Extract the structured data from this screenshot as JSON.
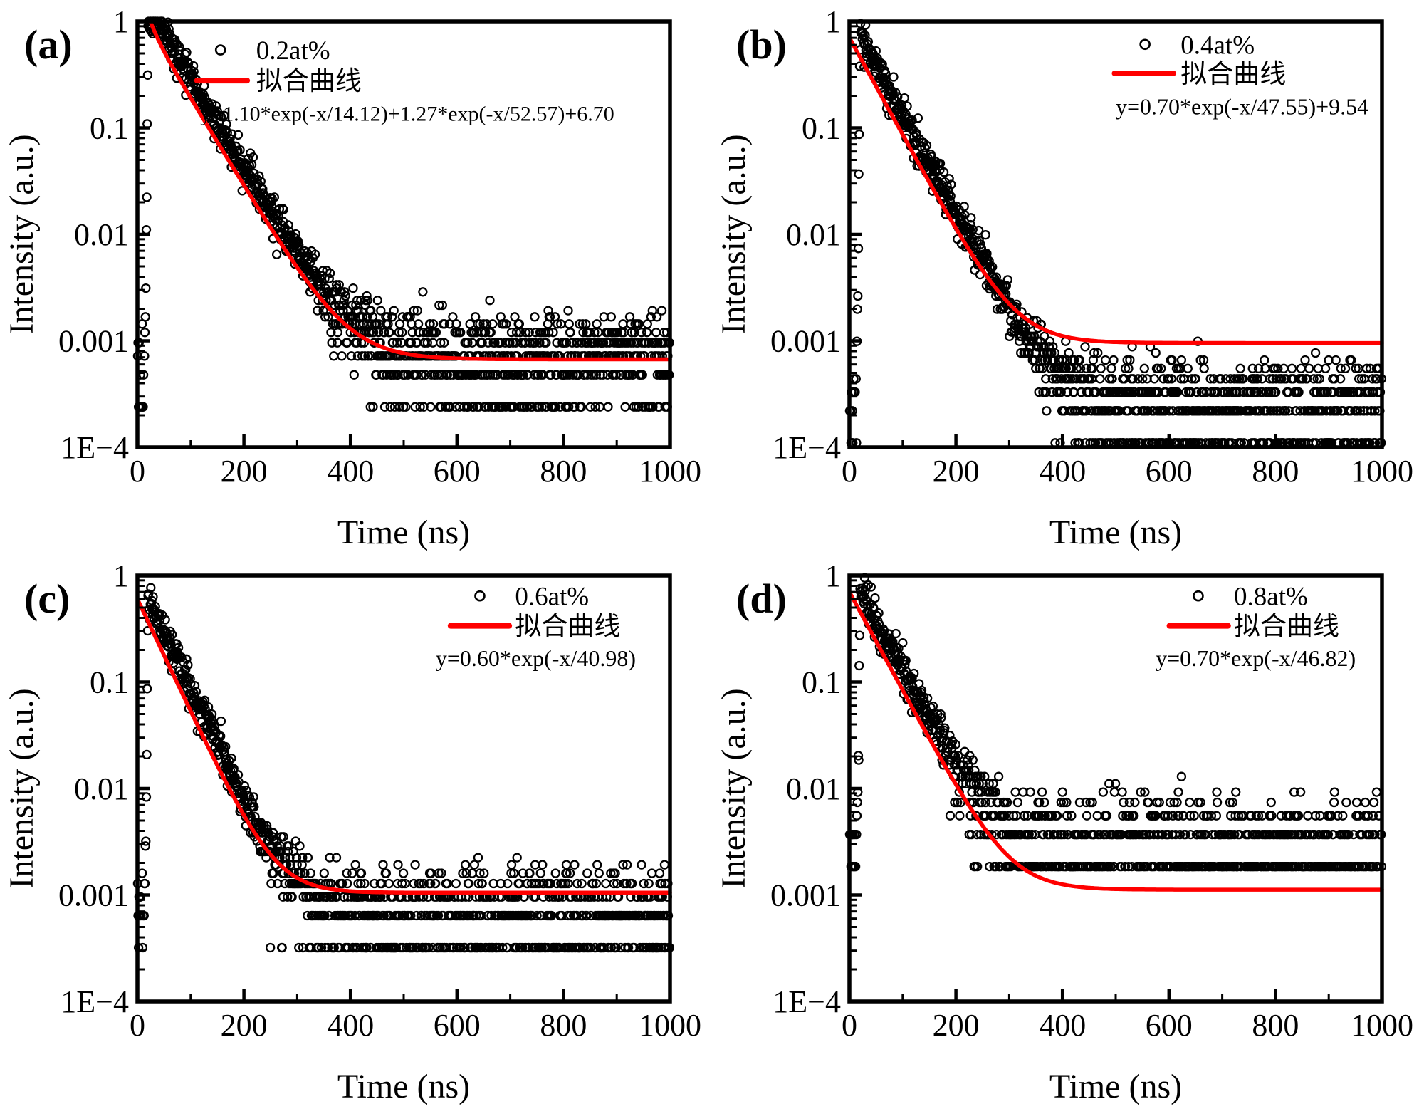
{
  "figure_title": "",
  "axes_shared": {
    "xlabel": "Time (ns)",
    "ylabel": "Intensity (a.u.)",
    "xlim": [
      0,
      1000
    ],
    "ylim": [
      0.0001,
      1
    ],
    "yscale": "log",
    "xscale": "linear",
    "xticks": [
      0,
      200,
      400,
      600,
      800,
      1000
    ],
    "xtick_labels": [
      "0",
      "200",
      "400",
      "600",
      "800",
      "1000"
    ],
    "xtick_minor_step": 100,
    "ytick_labels": [
      "1",
      "0.1",
      "0.01",
      "0.001",
      "1E−4"
    ],
    "ytick_values": [
      1,
      0.1,
      0.01,
      0.001,
      0.0001
    ],
    "grid": false,
    "tick_direction": "in",
    "frame": true
  },
  "colors": {
    "data_marker": "#000000",
    "fit_line": "#ff0000",
    "background": "#ffffff",
    "text": "#000000"
  },
  "chart_data": [
    {
      "type": "scatter",
      "panel_tag": "(a)",
      "xlabel": "Time (ns)",
      "ylabel": "Intensity (a.u.)",
      "series": [
        {
          "name": "0.2at%",
          "kind": "scatter",
          "marker": "open-circle",
          "color": "#000000"
        },
        {
          "name": "拟合曲线",
          "kind": "line",
          "color": "#ff0000",
          "equation": "y=1.10*exp(-x/14.12)+1.27*exp(-x/52.57)+6.70"
        }
      ],
      "legend": {
        "scatter_label": "0.2at%",
        "fit_label": "拟合曲线",
        "equation": "y=1.10*exp(-x/14.12)+1.27*exp(-x/52.57)+6.70",
        "position": "upper-center"
      },
      "fit": {
        "amplitudes": [
          1.1,
          1.27
        ],
        "taus_ns": [
          14.12,
          52.57
        ],
        "background_level": 0.00067,
        "pulse_peak_ns": 20
      },
      "noise_model": {
        "count_quantum": 0.00024,
        "tail_mean_level": 0.00072,
        "tail_band_start_ns": 360
      },
      "decay_reaches_floor_ns": 420
    },
    {
      "type": "scatter",
      "panel_tag": "(b)",
      "xlabel": "Time (ns)",
      "ylabel": "Intensity (a.u.)",
      "series": [
        {
          "name": "0.4at%",
          "kind": "scatter",
          "marker": "open-circle",
          "color": "#000000"
        },
        {
          "name": "拟合曲线",
          "kind": "line",
          "color": "#ff0000",
          "equation": "y=0.70*exp(-x/47.55)+9.54"
        }
      ],
      "legend": {
        "scatter_label": "0.4at%",
        "fit_label": "拟合曲线",
        "equation": "y=0.70*exp(-x/47.55)+9.54",
        "position": "upper-right"
      },
      "fit": {
        "amplitudes": [
          0.7
        ],
        "taus_ns": [
          47.55
        ],
        "background_level": 0.000954,
        "pulse_peak_ns": 20
      },
      "noise_model": {
        "count_quantum": 0.00011,
        "tail_mean_level": 0.00025,
        "tail_band_start_ns": 380
      },
      "decay_reaches_floor_ns": 420
    },
    {
      "type": "scatter",
      "panel_tag": "(c)",
      "xlabel": "Time (ns)",
      "ylabel": "Intensity (a.u.)",
      "series": [
        {
          "name": "0.6at%",
          "kind": "scatter",
          "marker": "open-circle",
          "color": "#000000"
        },
        {
          "name": "拟合曲线",
          "kind": "line",
          "color": "#ff0000",
          "equation": "y=0.60*exp(-x/40.98)"
        }
      ],
      "legend": {
        "scatter_label": "0.6at%",
        "fit_label": "拟合曲线",
        "equation": "y=0.60*exp(-x/40.98)",
        "position": "upper-right"
      },
      "fit": {
        "amplitudes": [
          0.6
        ],
        "taus_ns": [
          40.98
        ],
        "background_level": 0.00105,
        "pulse_peak_ns": 20
      },
      "noise_model": {
        "count_quantum": 0.00032,
        "tail_mean_level": 0.00066,
        "tail_band_start_ns": 290
      },
      "decay_reaches_floor_ns": 330
    },
    {
      "type": "scatter",
      "panel_tag": "(d)",
      "xlabel": "Time (ns)",
      "ylabel": "Intensity (a.u.)",
      "series": [
        {
          "name": "0.8at%",
          "kind": "scatter",
          "marker": "open-circle",
          "color": "#000000"
        },
        {
          "name": "拟合曲线",
          "kind": "line",
          "color": "#ff0000",
          "equation": "y=0.70*exp(-x/46.82)"
        }
      ],
      "legend": {
        "scatter_label": "0.8at%",
        "fit_label": "拟合曲线",
        "equation": "y=0.70*exp(-x/46.82)",
        "position": "upper-right"
      },
      "fit": {
        "amplitudes": [
          0.7
        ],
        "taus_ns": [
          46.82
        ],
        "background_level": 0.00112,
        "pulse_peak_ns": 20
      },
      "noise_model": {
        "count_quantum": 0.00185,
        "tail_mean_level": 0.0024,
        "tail_band_start_ns": 220
      },
      "decay_reaches_floor_ns": 290
    }
  ]
}
